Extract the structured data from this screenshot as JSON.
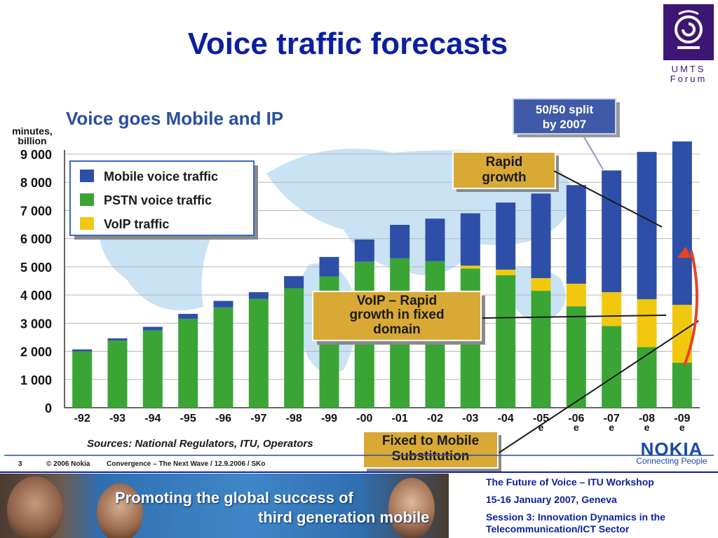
{
  "slide": {
    "title": "Voice traffic forecasts"
  },
  "logo": {
    "line1": "UMTS",
    "line2": "Forum"
  },
  "chart_data": {
    "type": "bar",
    "title": "Voice goes Mobile and IP",
    "ylabel": "minutes, billion",
    "ylim": [
      0,
      9000
    ],
    "yticks": [
      0,
      1000,
      2000,
      3000,
      4000,
      5000,
      6000,
      7000,
      8000,
      9000
    ],
    "ytick_labels": [
      "0",
      "1 000",
      "2 000",
      "3 000",
      "4 000",
      "5 000",
      "6 000",
      "7 000",
      "8 000",
      "9 000"
    ],
    "categories": [
      "-92",
      "-93",
      "-94",
      "-95",
      "-96",
      "-97",
      "-98",
      "-99",
      "-00",
      "-01",
      "-02",
      "-03",
      "-04",
      "-05\ne",
      "-06\ne",
      "-07\ne",
      "-08\ne",
      "-09\ne"
    ],
    "stacked": true,
    "series": [
      {
        "name": "PSTN voice traffic",
        "color": "#3aa535",
        "values": [
          2000,
          2380,
          2740,
          3150,
          3560,
          3860,
          4240,
          4660,
          5180,
          5300,
          5200,
          4940,
          4700,
          4150,
          3600,
          2900,
          2150,
          1600
        ]
      },
      {
        "name": "VoIP traffic",
        "color": "#f2c80f",
        "values": [
          0,
          0,
          0,
          0,
          0,
          0,
          0,
          0,
          0,
          0,
          0,
          100,
          200,
          450,
          800,
          1200,
          1700,
          2050
        ]
      },
      {
        "name": "Mobile voice traffic",
        "color": "#2e4fa8",
        "values": [
          70,
          80,
          130,
          180,
          230,
          240,
          430,
          690,
          790,
          1190,
          1510,
          1860,
          2380,
          3000,
          3500,
          4320,
          5230,
          5800
        ]
      }
    ],
    "legend_position": "top-left",
    "annotations": [
      {
        "text": "50/50 split by 2007",
        "lines": [
          "50/50 split",
          "by 2007"
        ],
        "style": "blue-box"
      },
      {
        "text": "Rapid growth",
        "lines": [
          "Rapid",
          "growth"
        ],
        "style": "gold-box"
      },
      {
        "text": "VoIP – Rapid growth in fixed domain",
        "lines": [
          "VoIP – Rapid",
          "growth in fixed",
          "domain"
        ],
        "style": "gold-box"
      },
      {
        "text": "Fixed to Mobile Substitution",
        "lines": [
          "Fixed to Mobile",
          "Substitution"
        ],
        "style": "gold-box"
      }
    ],
    "source": "Sources: National Regulators, ITU, Operators",
    "footer": {
      "page": "3",
      "copyright": "© 2006 Nokia",
      "ref": "Convergence – The Next Wave  /  12.9.2006 / SKo"
    },
    "brand": {
      "name": "NOKIA",
      "tagline": "Connecting People"
    }
  },
  "banner": {
    "line1": "Promoting the global success of",
    "line2": "third generation mobile"
  },
  "workshop": {
    "line1": "The Future of Voice – ITU Workshop",
    "line2": "15-16 January 2007, Geneva",
    "line3": "Session 3: Innovation Dynamics in the Telecommunication/ICT Sector"
  }
}
